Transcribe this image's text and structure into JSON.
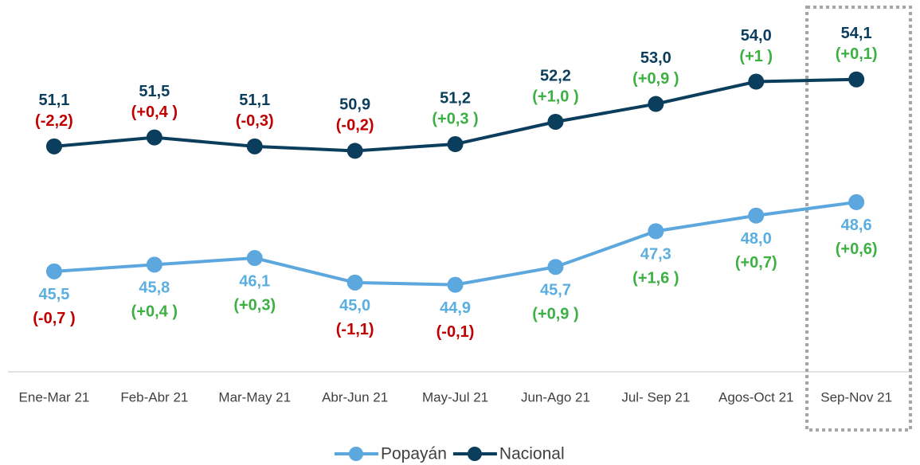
{
  "chart_data": {
    "type": "line",
    "categories": [
      "Ene-Mar 21",
      "Feb-Abr 21",
      "Mar-May 21",
      "Abr-Jun 21",
      "May-Jul 21",
      "Jun-Ago 21",
      "Jul- Sep 21",
      "Agos-Oct 21",
      "Sep-Nov 21"
    ],
    "ylim": [
      41,
      57.3
    ],
    "series": [
      {
        "name": "Popayán",
        "color": "#5ca7dd",
        "label_color": "#5aaee0",
        "label_position": "below",
        "values": [
          45.5,
          45.8,
          46.1,
          45.0,
          44.9,
          45.7,
          47.3,
          48.0,
          48.6
        ],
        "value_labels": [
          "45,5",
          "45,8",
          "46,1",
          "45,0",
          "44,9",
          "45,7",
          "47,3",
          "48,0",
          "48,6"
        ],
        "changes": [
          "(-0,7 )",
          "(+0,4 )",
          "(+0,3)",
          "(-1,1)",
          "(-0,1)",
          "(+0,9 )",
          "(+1,6 )",
          "(+0,7)",
          "(+0,6)"
        ],
        "change_colors": [
          "#c00000",
          "#3cb043",
          "#3cb043",
          "#c00000",
          "#c00000",
          "#3cb043",
          "#3cb043",
          "#3cb043",
          "#3cb043"
        ]
      },
      {
        "name": "Nacional",
        "color": "#0b3d5c",
        "label_color": "#0b3d5c",
        "label_position": "above",
        "values": [
          51.1,
          51.5,
          51.1,
          50.9,
          51.2,
          52.2,
          53.0,
          54.0,
          54.1
        ],
        "value_labels": [
          "51,1",
          "51,5",
          "51,1",
          "50,9",
          "51,2",
          "52,2",
          "53,0",
          "54,0",
          "54,1"
        ],
        "changes": [
          "(-2,2)",
          "(+0,4 )",
          "(-0,3)",
          "(-0,2)",
          "(+0,3 )",
          "(+1,0 )",
          "(+0,9 )",
          "(+1 )",
          "(+0,1)"
        ],
        "change_colors": [
          "#c00000",
          "#c00000",
          "#c00000",
          "#c00000",
          "#3cb043",
          "#3cb043",
          "#3cb043",
          "#3cb043",
          "#3cb043"
        ]
      }
    ]
  }
}
